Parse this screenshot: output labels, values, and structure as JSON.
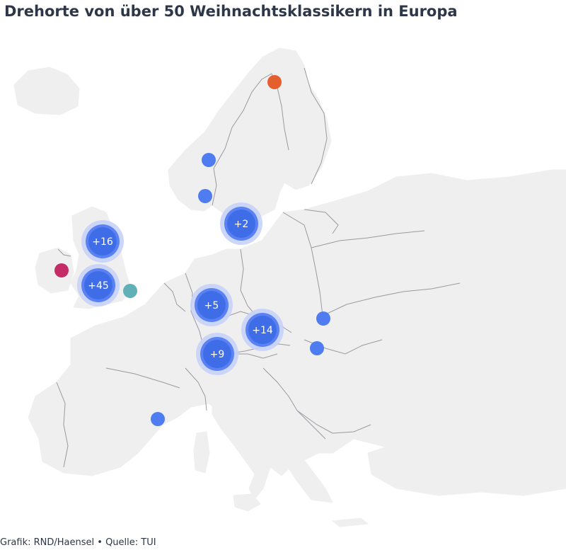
{
  "title": "Drehorte von über 50 Weihnachtsklassikern in Europa",
  "footer": {
    "credit": "Grafik: RND/Haensel",
    "separator": "•",
    "source": "Quelle: TUI"
  },
  "colors": {
    "land": "#efeff0",
    "border": "#9a9aa0",
    "marker_blue": "#4f7cf0",
    "cluster_halo": "#c7d2f7",
    "marker_orange": "#e55f2e",
    "marker_magenta": "#c42b67",
    "marker_teal": "#5fb1b7"
  },
  "clusters": [
    {
      "id": "scandinavia",
      "label": "+2"
    },
    {
      "id": "uk-north",
      "label": "+16"
    },
    {
      "id": "uk-south",
      "label": "+45"
    },
    {
      "id": "germany-west",
      "label": "+5"
    },
    {
      "id": "czechia",
      "label": "+14"
    },
    {
      "id": "alps",
      "label": "+9"
    }
  ],
  "markers": [
    {
      "id": "lapland",
      "color": "orange"
    },
    {
      "id": "norway-north",
      "color": "blue"
    },
    {
      "id": "norway-south",
      "color": "blue"
    },
    {
      "id": "ireland",
      "color": "magenta"
    },
    {
      "id": "england-east",
      "color": "teal"
    },
    {
      "id": "poland-south",
      "color": "blue"
    },
    {
      "id": "hungary",
      "color": "blue"
    },
    {
      "id": "spain-coast",
      "color": "blue"
    }
  ]
}
